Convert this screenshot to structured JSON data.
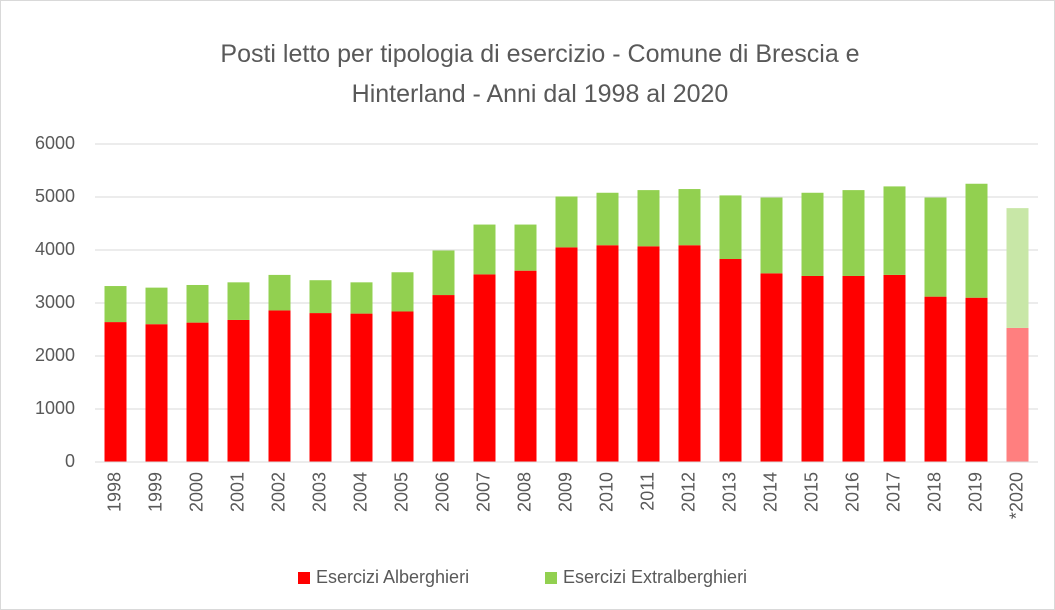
{
  "chart_data": {
    "type": "stacked_bar",
    "title": "Posti letto per tipologia di esercizio - Comune di Brescia e Hinterland - Anni dal 1998 al 2020",
    "categories": [
      "1998",
      "1999",
      "2000",
      "2001",
      "2002",
      "2003",
      "2004",
      "2005",
      "2006",
      "2007",
      "2008",
      "2009",
      "2010",
      "2011",
      "2012",
      "2013",
      "2014",
      "2015",
      "2016",
      "2017",
      "2018",
      "2019",
      "*2020"
    ],
    "series": [
      {
        "name": "Esercizi Alberghieri",
        "color": "#ff0000",
        "colors": [
          "#ff0000",
          "#ff0000",
          "#ff0000",
          "#ff0000",
          "#ff0000",
          "#ff0000",
          "#ff0000",
          "#ff0000",
          "#ff0000",
          "#ff0000",
          "#ff0000",
          "#ff0000",
          "#ff0000",
          "#ff0000",
          "#ff0000",
          "#ff0000",
          "#ff0000",
          "#ff0000",
          "#ff0000",
          "#ff0000",
          "#ff0000",
          "#ff0000",
          "#ff7f7f"
        ],
        "values": [
          2640,
          2600,
          2630,
          2680,
          2860,
          2810,
          2800,
          2840,
          3150,
          3540,
          3610,
          4050,
          4090,
          4070,
          4090,
          3830,
          3560,
          3510,
          3510,
          3530,
          3120,
          3100,
          2530
        ]
      },
      {
        "name": "Esercizi Extralberghieri",
        "color": "#92d050",
        "colors": [
          "#92d050",
          "#92d050",
          "#92d050",
          "#92d050",
          "#92d050",
          "#92d050",
          "#92d050",
          "#92d050",
          "#92d050",
          "#92d050",
          "#92d050",
          "#92d050",
          "#92d050",
          "#92d050",
          "#92d050",
          "#92d050",
          "#92d050",
          "#92d050",
          "#92d050",
          "#92d050",
          "#92d050",
          "#92d050",
          "#c8e7a7"
        ],
        "values": [
          680,
          690,
          710,
          710,
          670,
          620,
          590,
          740,
          840,
          940,
          870,
          960,
          990,
          1060,
          1060,
          1200,
          1430,
          1570,
          1620,
          1670,
          1870,
          2150,
          2260
        ]
      }
    ],
    "ylim": [
      0,
      6000
    ],
    "yticks": [
      0,
      1000,
      2000,
      3000,
      4000,
      5000,
      6000
    ],
    "grid": true,
    "legend": "bottom"
  }
}
